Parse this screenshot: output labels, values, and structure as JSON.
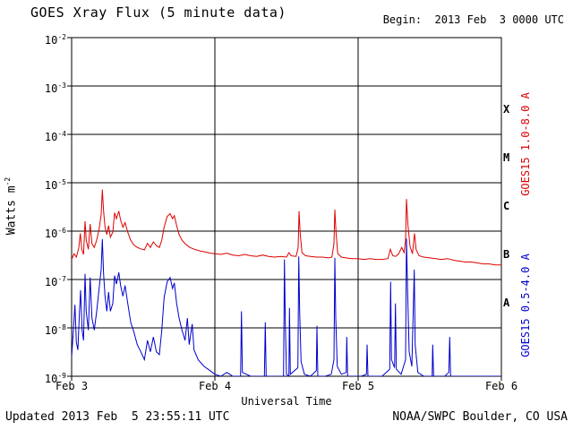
{
  "header": {
    "title": "GOES Xray Flux (5 minute data)",
    "begin_label": "Begin:  2013 Feb  3 0000 UTC"
  },
  "footer": {
    "updated": "Updated 2013 Feb  5 23:55:11 UTC",
    "source": "NOAA/SWPC Boulder, CO USA"
  },
  "axes": {
    "y_label_base": "Watts m",
    "y_label_exponent": "-2",
    "x_label": "Universal Time",
    "y_tick_exponents": [
      -2,
      -3,
      -4,
      -5,
      -6,
      -7,
      -8,
      -9
    ],
    "class_letters": [
      "X",
      "M",
      "C",
      "B",
      "A"
    ]
  },
  "right_labels": {
    "red": "GOES15 1.0-8.0 A",
    "blue": "GOES15 0.5-4.0 A"
  },
  "colors": {
    "red": "#dd0000",
    "blue": "#0000cc",
    "grid": "#000000",
    "background": "#ffffff",
    "text": "#000000"
  },
  "chart_data": {
    "type": "line",
    "title": "GOES Xray Flux (5 minute data)",
    "xlabel": "Universal Time",
    "ylabel": "Watts m^-2",
    "x_unit": "hours since 2013 Feb 3 0000 UTC",
    "x_range": [
      0,
      72
    ],
    "y_range_log10": [
      -9,
      -2
    ],
    "y_scale": "log",
    "grid": "decade horizontal lines, vertical lines at day boundaries",
    "x_ticks": [
      {
        "hour": 0,
        "label": "Feb 3"
      },
      {
        "hour": 24,
        "label": "Feb 4"
      },
      {
        "hour": 48,
        "label": "Feb 5"
      },
      {
        "hour": 72,
        "label": "Feb 6"
      }
    ],
    "day_gridline_hours": [
      24,
      48
    ],
    "series": [
      {
        "name": "GOES15 1.0-8.0 A",
        "color": "#dd0000",
        "points": [
          [
            0,
            2.6e-07
          ],
          [
            0.4,
            3.4e-07
          ],
          [
            0.8,
            2.9e-07
          ],
          [
            1.2,
            4.5e-07
          ],
          [
            1.45,
            9e-07
          ],
          [
            1.7,
            4.2e-07
          ],
          [
            2.0,
            3.3e-07
          ],
          [
            2.25,
            1.6e-06
          ],
          [
            2.45,
            6.5e-07
          ],
          [
            2.8,
            4.2e-07
          ],
          [
            3.1,
            1.4e-06
          ],
          [
            3.4,
            5.5e-07
          ],
          [
            3.8,
            4.6e-07
          ],
          [
            4.2,
            6.5e-07
          ],
          [
            4.6,
            1.1e-06
          ],
          [
            4.95,
            2.2e-06
          ],
          [
            5.15,
            7.2e-06
          ],
          [
            5.35,
            2.6e-06
          ],
          [
            5.6,
            1.2e-06
          ],
          [
            5.9,
            8.5e-07
          ],
          [
            6.2,
            1.3e-06
          ],
          [
            6.5,
            7.5e-07
          ],
          [
            6.9,
            9.5e-07
          ],
          [
            7.2,
            2.4e-06
          ],
          [
            7.5,
            1.8e-06
          ],
          [
            7.9,
            2.6e-06
          ],
          [
            8.2,
            1.7e-06
          ],
          [
            8.6,
            1.2e-06
          ],
          [
            8.95,
            1.5e-06
          ],
          [
            9.4,
            9.5e-07
          ],
          [
            9.9,
            6.5e-07
          ],
          [
            10.4,
            5.2e-07
          ],
          [
            11,
            4.6e-07
          ],
          [
            11.6,
            4.3e-07
          ],
          [
            12.2,
            4.1e-07
          ],
          [
            12.7,
            5.6e-07
          ],
          [
            13.2,
            4.6e-07
          ],
          [
            13.7,
            6e-07
          ],
          [
            14.2,
            5e-07
          ],
          [
            14.7,
            4.6e-07
          ],
          [
            15.1,
            6.5e-07
          ],
          [
            15.5,
            1.2e-06
          ],
          [
            16,
            2e-06
          ],
          [
            16.5,
            2.3e-06
          ],
          [
            16.9,
            1.8e-06
          ],
          [
            17.2,
            2.1e-06
          ],
          [
            17.6,
            1.3e-06
          ],
          [
            18,
            8.5e-07
          ],
          [
            18.5,
            6.5e-07
          ],
          [
            19,
            5.5e-07
          ],
          [
            19.8,
            4.6e-07
          ],
          [
            20.6,
            4.2e-07
          ],
          [
            21.5,
            3.9e-07
          ],
          [
            22.4,
            3.7e-07
          ],
          [
            23.2,
            3.5e-07
          ],
          [
            24,
            3.4e-07
          ],
          [
            25,
            3.3e-07
          ],
          [
            26,
            3.5e-07
          ],
          [
            27,
            3.2e-07
          ],
          [
            28,
            3.1e-07
          ],
          [
            29,
            3.3e-07
          ],
          [
            30,
            3.1e-07
          ],
          [
            31,
            3e-07
          ],
          [
            32,
            3.2e-07
          ],
          [
            33,
            3e-07
          ],
          [
            34,
            2.9e-07
          ],
          [
            35,
            3e-07
          ],
          [
            36,
            2.9e-07
          ],
          [
            36.4,
            3.6e-07
          ],
          [
            36.8,
            3.1e-07
          ],
          [
            37.6,
            3e-07
          ],
          [
            37.95,
            4.5e-07
          ],
          [
            38.1,
            2.6e-06
          ],
          [
            38.3,
            9e-07
          ],
          [
            38.6,
            3.6e-07
          ],
          [
            39.2,
            3.1e-07
          ],
          [
            40,
            3e-07
          ],
          [
            41,
            2.9e-07
          ],
          [
            42,
            2.9e-07
          ],
          [
            43,
            2.8e-07
          ],
          [
            43.6,
            2.9e-07
          ],
          [
            43.95,
            5.5e-07
          ],
          [
            44.1,
            2.8e-06
          ],
          [
            44.3,
            9.5e-07
          ],
          [
            44.6,
            3.4e-07
          ],
          [
            45.2,
            2.9e-07
          ],
          [
            46,
            2.8e-07
          ],
          [
            47,
            2.7e-07
          ],
          [
            48,
            2.7e-07
          ],
          [
            49,
            2.6e-07
          ],
          [
            50,
            2.7e-07
          ],
          [
            51,
            2.6e-07
          ],
          [
            52,
            2.6e-07
          ],
          [
            53,
            2.7e-07
          ],
          [
            53.4,
            4.2e-07
          ],
          [
            53.8,
            3.1e-07
          ],
          [
            54.3,
            3e-07
          ],
          [
            54.8,
            3.4e-07
          ],
          [
            55.3,
            4.6e-07
          ],
          [
            55.7,
            3.6e-07
          ],
          [
            55.95,
            6.5e-07
          ],
          [
            56.1,
            4.6e-06
          ],
          [
            56.35,
            1.3e-06
          ],
          [
            56.7,
            4.8e-07
          ],
          [
            57.1,
            3.4e-07
          ],
          [
            57.45,
            9e-07
          ],
          [
            57.7,
            4.2e-07
          ],
          [
            58.2,
            3.1e-07
          ],
          [
            59,
            2.9e-07
          ],
          [
            60,
            2.8e-07
          ],
          [
            61,
            2.7e-07
          ],
          [
            62,
            2.6e-07
          ],
          [
            63,
            2.7e-07
          ],
          [
            64,
            2.5e-07
          ],
          [
            65,
            2.4e-07
          ],
          [
            66,
            2.3e-07
          ],
          [
            67,
            2.3e-07
          ],
          [
            68,
            2.2e-07
          ],
          [
            69,
            2.1e-07
          ],
          [
            70,
            2.1e-07
          ],
          [
            71,
            2e-07
          ],
          [
            72,
            2e-07
          ]
        ]
      },
      {
        "name": "GOES15 0.5-4.0 A",
        "color": "#0000cc",
        "points": [
          [
            0,
            2.5e-09
          ],
          [
            0.3,
            9e-09
          ],
          [
            0.55,
            3e-08
          ],
          [
            0.8,
            5e-09
          ],
          [
            1.05,
            3.5e-09
          ],
          [
            1.3,
            2e-08
          ],
          [
            1.5,
            6e-08
          ],
          [
            1.75,
            9e-09
          ],
          [
            2.0,
            5.5e-09
          ],
          [
            2.25,
            1.3e-07
          ],
          [
            2.45,
            2.2e-08
          ],
          [
            2.8,
            9e-09
          ],
          [
            3.1,
            1.1e-07
          ],
          [
            3.4,
            1.6e-08
          ],
          [
            3.8,
            9e-09
          ],
          [
            4.2,
            2.2e-08
          ],
          [
            4.6,
            6.5e-08
          ],
          [
            4.95,
            1.6e-07
          ],
          [
            5.15,
            6.8e-07
          ],
          [
            5.35,
            1.3e-07
          ],
          [
            5.6,
            4.5e-08
          ],
          [
            5.9,
            2.2e-08
          ],
          [
            6.2,
            5.5e-08
          ],
          [
            6.5,
            2.2e-08
          ],
          [
            6.9,
            3.2e-08
          ],
          [
            7.2,
            1.2e-07
          ],
          [
            7.5,
            8e-08
          ],
          [
            7.9,
            1.4e-07
          ],
          [
            8.2,
            7.5e-08
          ],
          [
            8.6,
            4.5e-08
          ],
          [
            8.95,
            7.5e-08
          ],
          [
            9.4,
            3.2e-08
          ],
          [
            9.9,
            1.3e-08
          ],
          [
            10.4,
            8.5e-09
          ],
          [
            11,
            4.5e-09
          ],
          [
            11.6,
            3.2e-09
          ],
          [
            12.2,
            2.2e-09
          ],
          [
            12.7,
            5.5e-09
          ],
          [
            13.2,
            3.2e-09
          ],
          [
            13.7,
            6.5e-09
          ],
          [
            14.2,
            3.2e-09
          ],
          [
            14.7,
            2.8e-09
          ],
          [
            15.1,
            9e-09
          ],
          [
            15.5,
            4.2e-08
          ],
          [
            16,
            9e-08
          ],
          [
            16.5,
            1.1e-07
          ],
          [
            16.9,
            6.5e-08
          ],
          [
            17.2,
            8.5e-08
          ],
          [
            17.6,
            3.2e-08
          ],
          [
            18,
            1.6e-08
          ],
          [
            18.5,
            9e-09
          ],
          [
            19,
            5.5e-09
          ],
          [
            19.4,
            1.6e-08
          ],
          [
            19.7,
            4.5e-09
          ],
          [
            20.2,
            1.2e-08
          ],
          [
            20.5,
            3.5e-09
          ],
          [
            21.2,
            2.2e-09
          ],
          [
            22.2,
            1.6e-09
          ],
          [
            23.2,
            1.3e-09
          ],
          [
            24,
            1.1e-09
          ],
          [
            25,
            1e-09
          ],
          [
            26,
            1.2e-09
          ],
          [
            27,
            1e-09
          ],
          [
            28.3,
            1e-09
          ],
          [
            28.45,
            2.2e-08
          ],
          [
            28.6,
            1.2e-09
          ],
          [
            30,
            1e-09
          ],
          [
            31,
            1e-09
          ],
          [
            32.3,
            1e-09
          ],
          [
            32.45,
            1.3e-08
          ],
          [
            32.6,
            1e-09
          ],
          [
            34,
            1e-09
          ],
          [
            35.5,
            1e-09
          ],
          [
            35.65,
            2.6e-07
          ],
          [
            35.8,
            1.2e-08
          ],
          [
            36,
            1.1e-09
          ],
          [
            36.4,
            1e-09
          ],
          [
            36.5,
            2.6e-08
          ],
          [
            36.65,
            1.1e-09
          ],
          [
            37.9,
            1.5e-09
          ],
          [
            38.05,
            3e-07
          ],
          [
            38.2,
            2.2e-08
          ],
          [
            38.45,
            2e-09
          ],
          [
            39,
            1.1e-09
          ],
          [
            40,
            1e-09
          ],
          [
            41,
            1.3e-09
          ],
          [
            41.1,
            1.1e-08
          ],
          [
            41.25,
            1e-09
          ],
          [
            42.5,
            1e-09
          ],
          [
            43.5,
            1.1e-09
          ],
          [
            43.95,
            2.2e-09
          ],
          [
            44.1,
            2.8e-07
          ],
          [
            44.25,
            1.6e-08
          ],
          [
            44.5,
            1.6e-09
          ],
          [
            45.2,
            1.1e-09
          ],
          [
            46,
            1.2e-09
          ],
          [
            46.1,
            6.5e-09
          ],
          [
            46.25,
            1e-09
          ],
          [
            47.5,
            1e-09
          ],
          [
            48.5,
            1e-09
          ],
          [
            49.4,
            1.1e-09
          ],
          [
            49.5,
            4.5e-09
          ],
          [
            49.65,
            1e-09
          ],
          [
            51,
            1e-09
          ],
          [
            52,
            1e-09
          ],
          [
            53.3,
            1.4e-09
          ],
          [
            53.45,
            9e-08
          ],
          [
            53.6,
            2.2e-09
          ],
          [
            54.1,
            1.5e-09
          ],
          [
            54.25,
            3.2e-08
          ],
          [
            54.4,
            1.4e-09
          ],
          [
            55.2,
            1.1e-09
          ],
          [
            55.95,
            2.2e-09
          ],
          [
            56.1,
            7e-07
          ],
          [
            56.3,
            5.5e-08
          ],
          [
            56.55,
            3.2e-09
          ],
          [
            57,
            1.6e-09
          ],
          [
            57.4,
            1.6e-07
          ],
          [
            57.55,
            4.5e-09
          ],
          [
            58,
            1.2e-09
          ],
          [
            59,
            1e-09
          ],
          [
            60.4,
            1e-09
          ],
          [
            60.5,
            4.5e-09
          ],
          [
            60.65,
            1e-09
          ],
          [
            61.5,
            1e-09
          ],
          [
            62.5,
            1e-09
          ],
          [
            63.2,
            1.2e-09
          ],
          [
            63.35,
            6.5e-09
          ],
          [
            63.5,
            1e-09
          ],
          [
            64.5,
            1e-09
          ],
          [
            65.5,
            1e-09
          ],
          [
            66.5,
            1e-09
          ],
          [
            67.5,
            1e-09
          ],
          [
            68.5,
            1e-09
          ],
          [
            69.5,
            1e-09
          ],
          [
            70.5,
            1e-09
          ],
          [
            71.2,
            1e-09
          ],
          [
            72,
            1e-09
          ]
        ]
      }
    ]
  }
}
